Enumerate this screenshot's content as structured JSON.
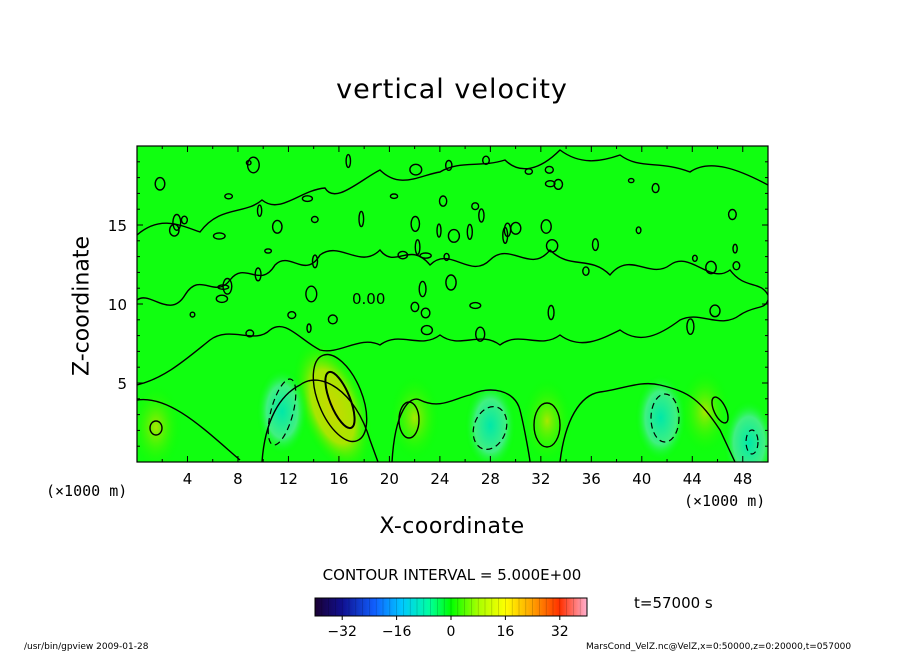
{
  "chart_data": {
    "type": "heatmap",
    "title": "vertical velocity",
    "xlabel": "X-coordinate",
    "ylabel": "Z-coordinate",
    "x_unit_label": "(×1000 m)",
    "x_unit_label_right": "(×1000 m)",
    "xlim": [
      0,
      50
    ],
    "ylim": [
      0,
      20
    ],
    "xticks": [
      4,
      8,
      12,
      16,
      20,
      24,
      28,
      32,
      36,
      40,
      44,
      48
    ],
    "xtick_labels": [
      "4",
      "8",
      "12",
      "16",
      "20",
      "24",
      "28",
      "32",
      "36",
      "40",
      "44",
      "48"
    ],
    "yticks": [
      5,
      10,
      15
    ],
    "ytick_labels": [
      "5",
      "10",
      "15"
    ],
    "contour_label": "0.00",
    "contour_interval_text": "CONTOUR INTERVAL = 5.000E+00",
    "colorbar": {
      "min": -40,
      "max": 40,
      "ticks": [
        -32,
        -16,
        0,
        16,
        32
      ],
      "tick_labels": [
        "−32",
        "−16",
        "0",
        "16",
        "32"
      ]
    },
    "features": [
      {
        "kind": "updraft",
        "x": 15.5,
        "z": 3.5,
        "level": 15
      },
      {
        "kind": "updraft",
        "x": 22,
        "z": 2.8,
        "level": 5
      },
      {
        "kind": "updraft",
        "x": 32.5,
        "z": 2.6,
        "level": 5
      },
      {
        "kind": "updraft",
        "x": 45,
        "z": 3.2,
        "level": 5
      },
      {
        "kind": "updraft",
        "x": 1.5,
        "z": 2.2,
        "level": 5
      },
      {
        "kind": "downdraft",
        "x": 11.5,
        "z": 3.2,
        "level": -5
      },
      {
        "kind": "downdraft",
        "x": 28,
        "z": 2.3,
        "level": -5
      },
      {
        "kind": "downdraft",
        "x": 41.5,
        "z": 2.8,
        "level": -5
      },
      {
        "kind": "downdraft",
        "x": 48.5,
        "z": 1.2,
        "level": -5
      }
    ]
  },
  "time_label": "t=57000 s",
  "footer": {
    "left": "/usr/bin/gpview   2009-01-28",
    "right": "MarsCond_VelZ.nc@VelZ,x=0:50000,z=0:20000,t=057000"
  },
  "colors": {
    "background": "#00ff00",
    "contour": "#000000"
  }
}
